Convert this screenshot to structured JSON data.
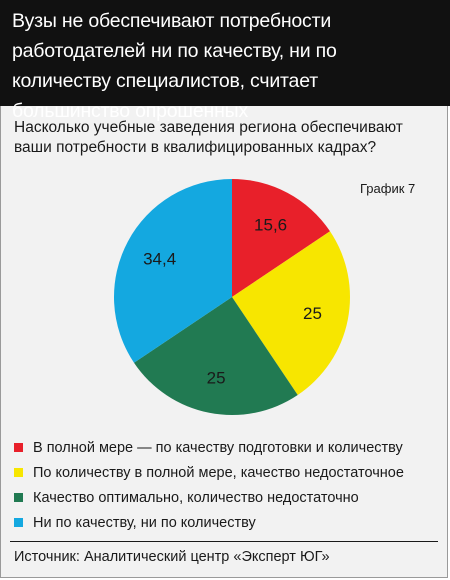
{
  "header": {
    "title": "Вузы не обеспечивают потребности работодателей ни по качеству, ни по количеству специалистов, считает большинство опрошенных"
  },
  "question": "Насколько учебные заведения региона обеспечивают ваши потребности в квалифицированных кадрах?",
  "graph_label": "График 7",
  "colors": {
    "header_bg": "#111111",
    "panel_bg": "#f2f2f2",
    "slice_red": "#e8202a",
    "slice_yellow": "#f7e600",
    "slice_green": "#217a52",
    "slice_blue": "#14a8e0"
  },
  "chart_data": {
    "type": "pie",
    "title": "",
    "slices": [
      {
        "label": "В полной мере — по качеству подготовки и количеству",
        "value": 15.6,
        "display": "15,6",
        "color": "#e8202a"
      },
      {
        "label": "По количеству в полной мере, качество недостаточное",
        "value": 25,
        "display": "25",
        "color": "#f7e600"
      },
      {
        "label": "Качество оптимально, количество недостаточно",
        "value": 25,
        "display": "25",
        "color": "#217a52"
      },
      {
        "label": "Ни по качеству, ни по количеству",
        "value": 34.4,
        "display": "34,4",
        "color": "#14a8e0"
      }
    ],
    "start_angle": "12 o'clock",
    "direction": "clockwise",
    "legend_position": "bottom"
  },
  "source": "Источник: Аналитический центр «Эксперт ЮГ»"
}
